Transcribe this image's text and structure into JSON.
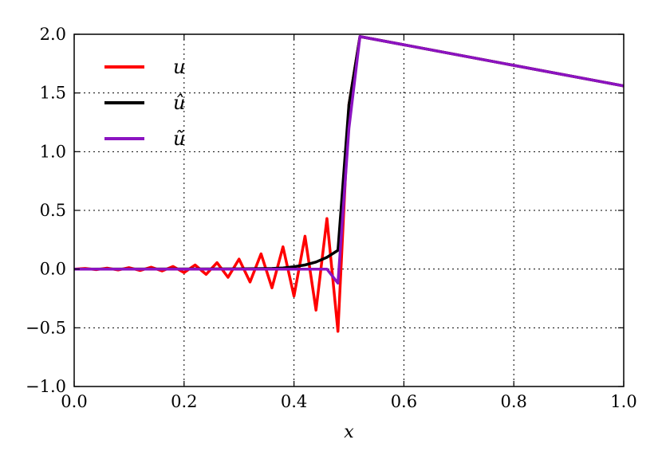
{
  "chart_data": {
    "type": "line",
    "title": "",
    "xlabel": "x",
    "ylabel": "",
    "xlim": [
      0.0,
      1.0
    ],
    "ylim": [
      -1.0,
      2.0
    ],
    "xticks": [
      0.0,
      0.2,
      0.4,
      0.6,
      0.8,
      1.0
    ],
    "xtick_labels": [
      "0.0",
      "0.2",
      "0.4",
      "0.6",
      "0.8",
      "1.0"
    ],
    "yticks": [
      -1.0,
      -0.5,
      0.0,
      0.5,
      1.0,
      1.5,
      2.0
    ],
    "ytick_labels": [
      "−1.0",
      "−0.5",
      "0.0",
      "0.5",
      "1.0",
      "1.5",
      "2.0"
    ],
    "grid": true,
    "legend_position": "top-left",
    "series": [
      {
        "name": "u",
        "color": "#ff0000",
        "x": [
          0.0,
          0.02,
          0.04,
          0.06,
          0.08,
          0.1,
          0.12,
          0.14,
          0.16,
          0.18,
          0.2,
          0.22,
          0.24,
          0.26,
          0.28,
          0.3,
          0.32,
          0.34,
          0.36,
          0.38,
          0.4,
          0.42,
          0.44,
          0.46,
          0.48,
          0.5,
          0.52,
          1.0
        ],
        "y": [
          0.0,
          0.005,
          -0.005,
          0.008,
          -0.008,
          0.012,
          -0.012,
          0.016,
          -0.016,
          0.022,
          -0.03,
          0.035,
          -0.045,
          0.055,
          -0.07,
          0.085,
          -0.11,
          0.13,
          -0.16,
          0.19,
          -0.23,
          0.28,
          -0.35,
          0.43,
          -0.53,
          1.4,
          1.98,
          1.56
        ]
      },
      {
        "name": "û",
        "color": "#000000",
        "x": [
          0.0,
          0.3,
          0.36,
          0.38,
          0.4,
          0.42,
          0.44,
          0.46,
          0.48,
          0.5,
          0.52,
          1.0
        ],
        "y": [
          0.0,
          0.002,
          0.005,
          0.01,
          0.02,
          0.035,
          0.06,
          0.1,
          0.16,
          1.4,
          1.98,
          1.56
        ]
      },
      {
        "name": "ũ",
        "color": "#8b13c1",
        "x": [
          0.0,
          0.44,
          0.46,
          0.48,
          0.5,
          0.52,
          1.0
        ],
        "y": [
          0.0,
          0.0,
          0.0,
          -0.12,
          1.2,
          1.98,
          1.56
        ]
      }
    ]
  }
}
